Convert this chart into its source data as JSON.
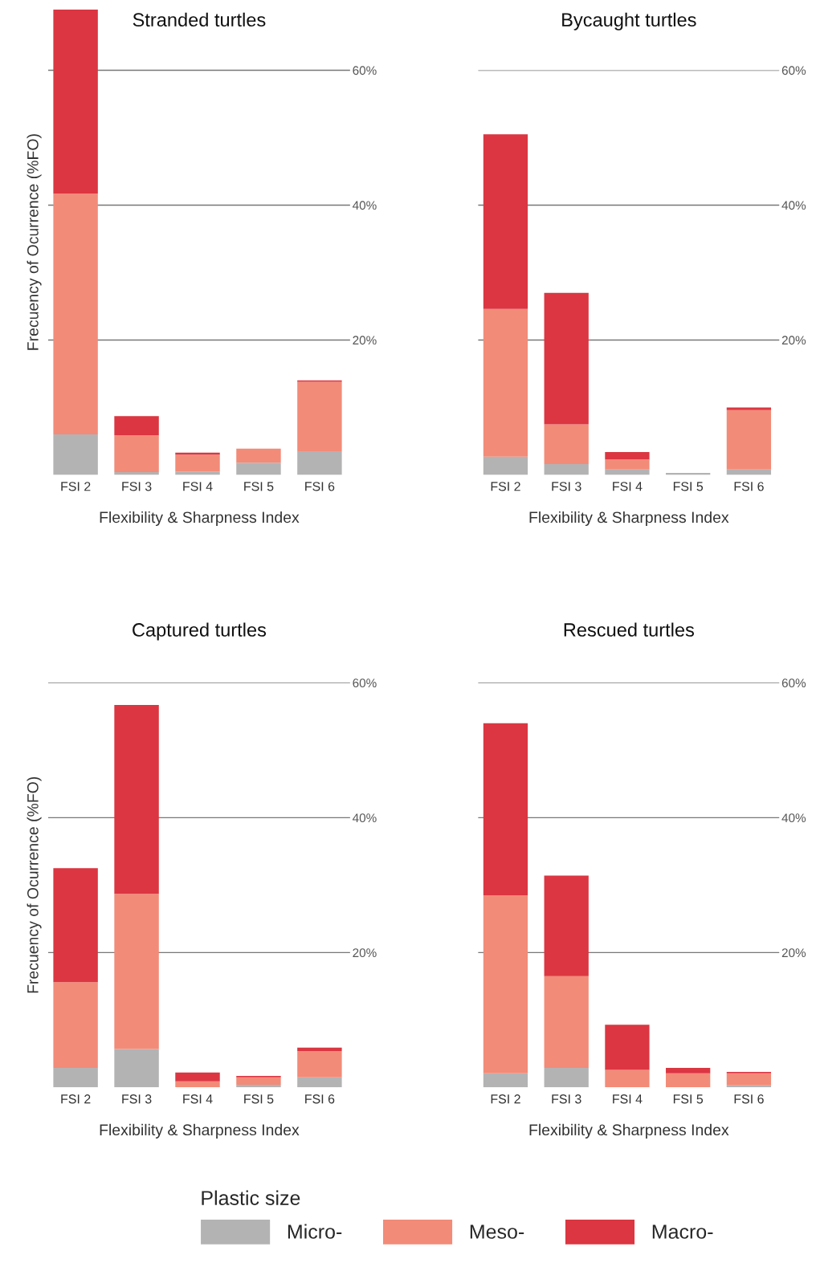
{
  "chart_data": [
    {
      "type": "bar",
      "stacked": true,
      "title": "Stranded turtles",
      "xlabel": "Flexibility & Sharpness Index",
      "ylabel": "Frecuency of Ocurrence (%FO)",
      "categories": [
        "FSI 2",
        "FSI 3",
        "FSI 4",
        "FSI 5",
        "FSI 6"
      ],
      "ylim": [
        0,
        69
      ],
      "yticks": [
        {
          "value": 20,
          "label": "20%"
        },
        {
          "value": 40,
          "label": "40%"
        },
        {
          "value": 60,
          "label": "60%"
        }
      ],
      "grid": "y",
      "series": [
        {
          "color": "#b3b3b4",
          "values": [
            6.0,
            0.4,
            0.5,
            1.8,
            3.5
          ]
        },
        {
          "color": "#f28b78",
          "values": [
            35.7,
            5.5,
            2.5,
            2.1,
            10.3
          ]
        },
        {
          "color": "#db3641",
          "values": [
            27.3,
            2.8,
            0.3,
            0,
            0.2
          ]
        }
      ]
    },
    {
      "type": "bar",
      "stacked": true,
      "title": "Bycaught turtles",
      "xlabel": "Flexibility & Sharpness Index",
      "categories": [
        "FSI 2",
        "FSI 3",
        "FSI 4",
        "FSI 5",
        "FSI 6"
      ],
      "ylim": [
        0,
        60
      ],
      "yticks": [
        {
          "value": 20,
          "label": "20%"
        },
        {
          "value": 40,
          "label": "40%"
        },
        {
          "value": 60,
          "label": "60%"
        }
      ],
      "grid": "y",
      "series": [
        {
          "color": "#b3b3b4",
          "values": [
            2.7,
            1.6,
            0.8,
            0.3,
            0.8
          ]
        },
        {
          "color": "#f28b78",
          "values": [
            21.9,
            5.9,
            1.5,
            0,
            8.8
          ]
        },
        {
          "color": "#db3641",
          "values": [
            25.9,
            19.5,
            1.1,
            0,
            0.4
          ]
        }
      ]
    },
    {
      "type": "bar",
      "stacked": true,
      "title": "Captured turtles",
      "xlabel": "Flexibility & Sharpness Index",
      "ylabel": "Frecuency of Ocurrence (%FO)",
      "categories": [
        "FSI 2",
        "FSI 3",
        "FSI 4",
        "FSI 5",
        "FSI 6"
      ],
      "ylim": [
        0,
        60
      ],
      "yticks": [
        {
          "value": 20,
          "label": "20%"
        },
        {
          "value": 40,
          "label": "40%"
        },
        {
          "value": 60,
          "label": "60%"
        }
      ],
      "grid": "y",
      "series": [
        {
          "color": "#b3b3b4",
          "values": [
            2.9,
            5.7,
            0,
            0.4,
            1.5
          ]
        },
        {
          "color": "#f28b78",
          "values": [
            12.7,
            23.0,
            0.9,
            1.1,
            3.9
          ]
        },
        {
          "color": "#db3641",
          "values": [
            16.9,
            28.0,
            1.3,
            0.2,
            0.5
          ]
        }
      ]
    },
    {
      "type": "bar",
      "stacked": true,
      "title": "Rescued turtles",
      "xlabel": "Flexibility & Sharpness Index",
      "categories": [
        "FSI 2",
        "FSI 3",
        "FSI 4",
        "FSI 5",
        "FSI 6"
      ],
      "ylim": [
        0,
        60
      ],
      "yticks": [
        {
          "value": 20,
          "label": "20%"
        },
        {
          "value": 40,
          "label": "40%"
        },
        {
          "value": 60,
          "label": "60%"
        }
      ],
      "grid": "y",
      "legend": "bottom",
      "legend_title": "Plastic size",
      "series": [
        {
          "name": "Micro-",
          "color": "#b3b3b4",
          "values": [
            2.1,
            2.9,
            0,
            0,
            0.3
          ]
        },
        {
          "name": "Meso-",
          "color": "#f28b78",
          "values": [
            26.4,
            13.6,
            2.6,
            2.1,
            1.8
          ]
        },
        {
          "name": "Macro-",
          "color": "#db3641",
          "values": [
            25.5,
            14.9,
            6.7,
            0.8,
            0.2
          ]
        }
      ]
    }
  ]
}
